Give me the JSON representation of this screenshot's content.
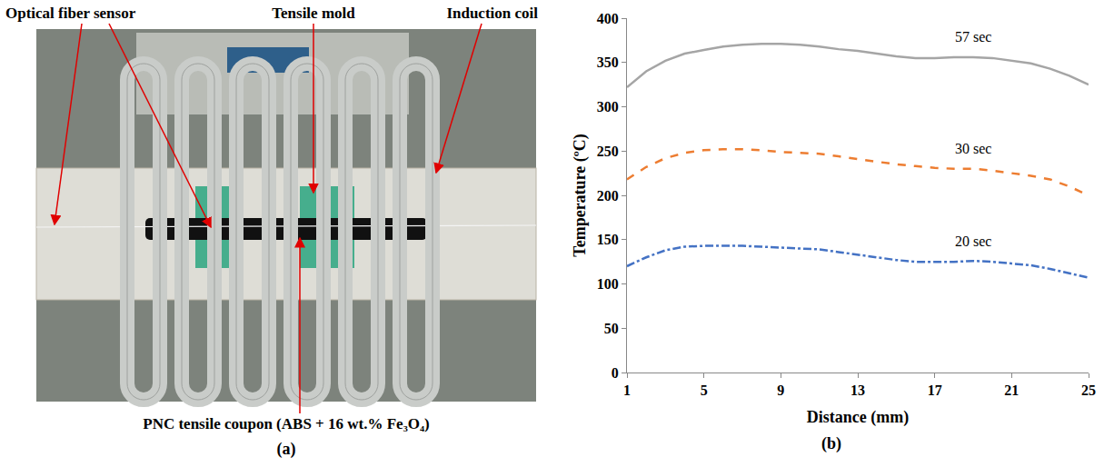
{
  "panel_labels": [
    "(a)",
    "(b)"
  ],
  "photo_panel": {
    "labels": [
      "Optical fiber sensor",
      "Tensile mold",
      "Induction coil"
    ],
    "caption": "PNC tensile coupon (ABS + 16 wt.% Fe₃O₄)"
  },
  "chart_data": {
    "type": "line",
    "x_label": "Distance (mm)",
    "y_label": "Temperature (ºC)",
    "x": [
      1,
      2,
      3,
      4,
      5,
      6,
      7,
      8,
      9,
      10,
      11,
      12,
      13,
      14,
      15,
      16,
      17,
      18,
      19,
      20,
      21,
      22,
      23,
      24,
      25
    ],
    "series": [
      {
        "name": "57 sec",
        "color": "#a5a5a5",
        "line_style": "solid",
        "values": [
          322,
          340,
          352,
          360,
          364,
          368,
          370,
          371,
          371,
          370,
          368,
          365,
          363,
          360,
          357,
          355,
          355,
          356,
          356,
          355,
          352,
          349,
          343,
          335,
          325
        ]
      },
      {
        "name": "30 sec",
        "color": "#ed7d31",
        "line_style": "dash",
        "values": [
          218,
          232,
          242,
          248,
          251,
          252,
          252,
          251,
          249,
          248,
          247,
          244,
          241,
          238,
          235,
          233,
          231,
          230,
          230,
          228,
          225,
          222,
          218,
          210,
          200
        ]
      },
      {
        "name": "20 sec",
        "color": "#4472c4",
        "line_style": "dashdot",
        "values": [
          120,
          130,
          138,
          142,
          143,
          143,
          143,
          142,
          141,
          140,
          139,
          136,
          133,
          130,
          127,
          125,
          125,
          125,
          126,
          125,
          123,
          121,
          117,
          112,
          107
        ]
      }
    ],
    "xlim": [
      1,
      25
    ],
    "xticks": [
      1,
      5,
      9,
      13,
      17,
      21,
      25
    ],
    "ylim": [
      0,
      400
    ],
    "yticks": [
      0,
      50,
      100,
      150,
      200,
      250,
      300,
      350,
      400
    ],
    "grid": false
  }
}
